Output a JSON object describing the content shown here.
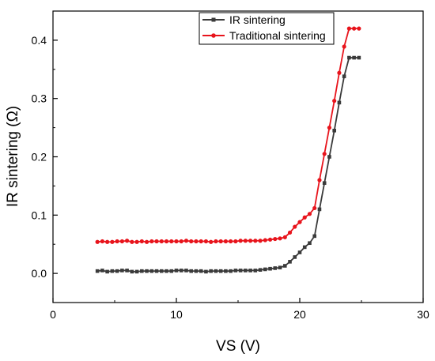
{
  "chart_data": {
    "type": "line",
    "xlabel": "VS (V)",
    "ylabel": "IR sintering (Ω)",
    "xlim": [
      0,
      30
    ],
    "ylim": [
      -0.05,
      0.45
    ],
    "xticks": [
      0,
      10,
      20,
      30
    ],
    "xtick_labels": [
      "0",
      "10",
      "20",
      "30"
    ],
    "yticks": [
      0.0,
      0.1,
      0.2,
      0.3,
      0.4
    ],
    "ytick_labels": [
      "0.0",
      "0.1",
      "0.2",
      "0.3",
      "0.4"
    ],
    "grid": false,
    "legend_position": "top-right",
    "series": [
      {
        "name": "IR sintering",
        "color": "#3a3a3a",
        "marker": "square",
        "x": [
          3.6,
          4.0,
          4.4,
          4.8,
          5.2,
          5.6,
          6.0,
          6.4,
          6.8,
          7.2,
          7.6,
          8.0,
          8.4,
          8.8,
          9.2,
          9.6,
          10.0,
          10.4,
          10.8,
          11.2,
          11.6,
          12.0,
          12.4,
          12.8,
          13.2,
          13.6,
          14.0,
          14.4,
          14.8,
          15.2,
          15.6,
          16.0,
          16.4,
          16.8,
          17.2,
          17.6,
          18.0,
          18.4,
          18.8,
          19.2,
          19.6,
          20.0,
          20.4,
          20.8,
          21.2,
          21.6,
          22.0,
          22.4,
          22.8,
          23.2,
          23.6,
          24.0,
          24.4,
          24.8
        ],
        "values": [
          0.004,
          0.005,
          0.003,
          0.004,
          0.004,
          0.005,
          0.005,
          0.003,
          0.003,
          0.004,
          0.004,
          0.004,
          0.004,
          0.004,
          0.004,
          0.004,
          0.005,
          0.005,
          0.005,
          0.004,
          0.004,
          0.004,
          0.003,
          0.004,
          0.004,
          0.004,
          0.004,
          0.004,
          0.005,
          0.005,
          0.005,
          0.005,
          0.005,
          0.006,
          0.007,
          0.008,
          0.009,
          0.01,
          0.013,
          0.02,
          0.028,
          0.036,
          0.045,
          0.052,
          0.064,
          0.11,
          0.155,
          0.2,
          0.245,
          0.293,
          0.338,
          0.37,
          0.37,
          0.37
        ]
      },
      {
        "name": "Traditional sintering",
        "color": "#e8141c",
        "marker": "circle",
        "x": [
          3.6,
          4.0,
          4.4,
          4.8,
          5.2,
          5.6,
          6.0,
          6.4,
          6.8,
          7.2,
          7.6,
          8.0,
          8.4,
          8.8,
          9.2,
          9.6,
          10.0,
          10.4,
          10.8,
          11.2,
          11.6,
          12.0,
          12.4,
          12.8,
          13.2,
          13.6,
          14.0,
          14.4,
          14.8,
          15.2,
          15.6,
          16.0,
          16.4,
          16.8,
          17.2,
          17.6,
          18.0,
          18.4,
          18.8,
          19.2,
          19.6,
          20.0,
          20.4,
          20.8,
          21.2,
          21.6,
          22.0,
          22.4,
          22.8,
          23.2,
          23.6,
          24.0,
          24.4,
          24.8
        ],
        "values": [
          0.054,
          0.055,
          0.054,
          0.054,
          0.055,
          0.055,
          0.056,
          0.054,
          0.054,
          0.055,
          0.054,
          0.055,
          0.055,
          0.055,
          0.055,
          0.055,
          0.055,
          0.055,
          0.056,
          0.055,
          0.055,
          0.055,
          0.055,
          0.054,
          0.055,
          0.055,
          0.055,
          0.055,
          0.055,
          0.056,
          0.056,
          0.056,
          0.056,
          0.056,
          0.057,
          0.058,
          0.059,
          0.06,
          0.062,
          0.07,
          0.08,
          0.088,
          0.096,
          0.102,
          0.112,
          0.16,
          0.205,
          0.25,
          0.296,
          0.344,
          0.389,
          0.42,
          0.42,
          0.42
        ]
      }
    ]
  }
}
